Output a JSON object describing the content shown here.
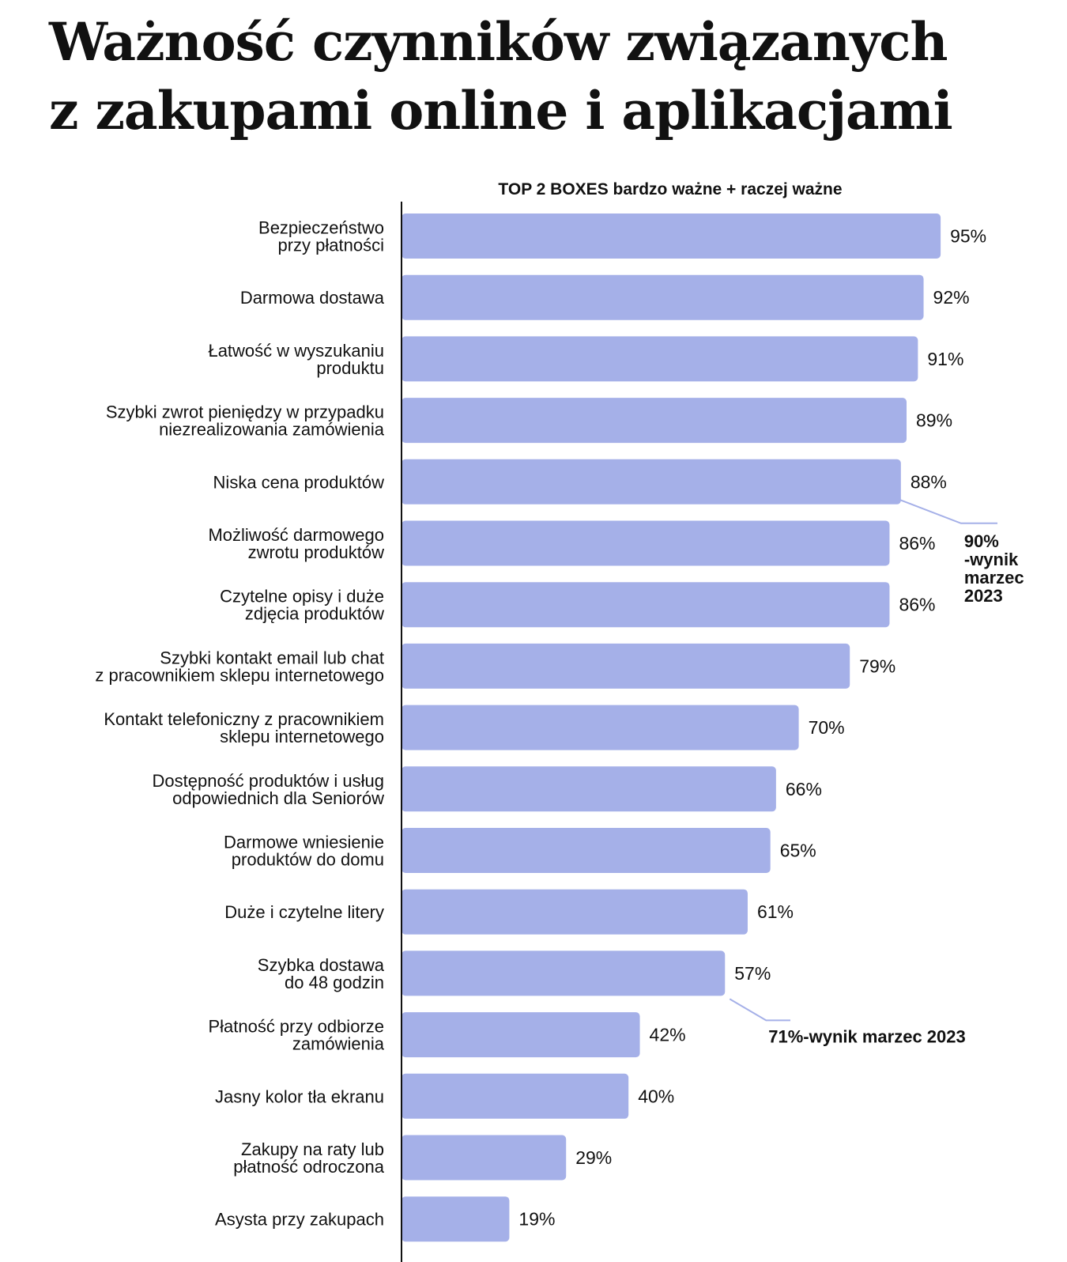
{
  "title": {
    "line1": "Ważność czynników związanych",
    "line2": "z zakupami online i aplikacjami"
  },
  "chart_data": {
    "type": "bar",
    "orientation": "horizontal",
    "subtitle": "TOP 2 BOXES bardzo ważne + raczej ważne",
    "categories": [
      [
        "Bezpieczeństwo",
        "przy płatności"
      ],
      [
        "Darmowa dostawa"
      ],
      [
        "Łatwość w wyszukaniu",
        "produktu"
      ],
      [
        "Szybki zwrot pieniędzy w przypadku",
        "niezrealizowania zamówienia"
      ],
      [
        "Niska cena produktów"
      ],
      [
        "Możliwość darmowego",
        "zwrotu produktów"
      ],
      [
        "Czytelne opisy i duże",
        "zdjęcia produktów"
      ],
      [
        "Szybki kontakt email lub chat",
        "z pracownikiem sklepu internetowego"
      ],
      [
        "Kontakt telefoniczny z pracownikiem",
        "sklepu internetowego"
      ],
      [
        "Dostępność produktów i usług",
        "odpowiednich dla Seniorów"
      ],
      [
        "Darmowe wniesienie",
        "produktów do domu"
      ],
      [
        "Duże i czytelne litery"
      ],
      [
        "Szybka dostawa",
        "do 48 godzin"
      ],
      [
        "Płatność przy odbiorze",
        "zamówienia"
      ],
      [
        "Jasny kolor tła ekranu"
      ],
      [
        "Zakupy na raty lub",
        "płatność odroczona"
      ],
      [
        "Asysta przy zakupach"
      ]
    ],
    "values": [
      95,
      92,
      91,
      89,
      88,
      86,
      86,
      79,
      70,
      66,
      65,
      61,
      57,
      42,
      40,
      29,
      19
    ],
    "value_labels": [
      "95%",
      "92%",
      "91%",
      "89%",
      "88%",
      "86%",
      "86%",
      "79%",
      "70%",
      "66%",
      "65%",
      "61%",
      "57%",
      "42%",
      "40%",
      "29%",
      "19%"
    ],
    "xlim": [
      0,
      100
    ],
    "bar_color": "#a5b0e8",
    "annotations": [
      {
        "bar_index": 4,
        "lines": [
          "90%",
          "-wynik",
          "marzec",
          "2023"
        ]
      },
      {
        "bar_index": 12,
        "lines": [
          "71%-wynik marzec 2023"
        ]
      }
    ]
  }
}
